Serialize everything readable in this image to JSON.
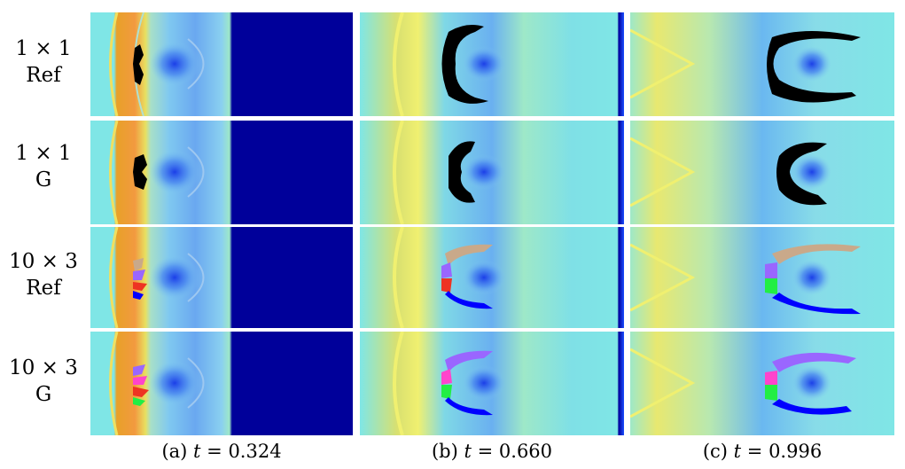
{
  "rows": [
    {
      "line1": "1 × 1",
      "line2": "Ref"
    },
    {
      "line1": "1 × 1",
      "line2": "G"
    },
    {
      "line1": "10 × 3",
      "line2": "Ref"
    },
    {
      "line1": "10 × 3",
      "line2": "G"
    }
  ],
  "columns": [
    {
      "label": "(a)",
      "var": "t",
      "value": "= 0.324"
    },
    {
      "label": "(b)",
      "var": "t",
      "value": "= 0.660"
    },
    {
      "label": "(c)",
      "var": "t",
      "value": "= 0.996"
    }
  ],
  "colors": {
    "background_field": "#7fe6e6",
    "cold_region": "#00009a",
    "shock_warm": "#f5a030",
    "shock_mid": "#e8e060",
    "fragment_single": "#000000",
    "fragment_multi": [
      "#c9a98a",
      "#9a66ff",
      "#ff44cc",
      "#0000ff",
      "#22ee44",
      "#ee3322",
      "#ffaa22"
    ]
  }
}
